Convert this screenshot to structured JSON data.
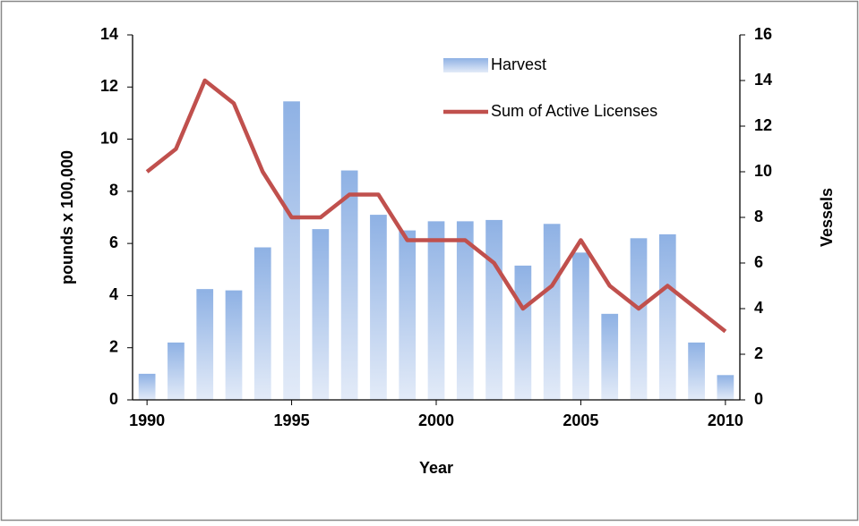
{
  "chart_data": {
    "type": "bar_line",
    "x_label": "Year",
    "y_label": "pounds x 100,000",
    "y2_label": "Vessels",
    "x": [
      1990,
      1991,
      1992,
      1993,
      1994,
      1995,
      1996,
      1997,
      1998,
      1999,
      2000,
      2001,
      2002,
      2003,
      2004,
      2005,
      2006,
      2007,
      2008,
      2009,
      2010
    ],
    "series": [
      {
        "name": "Harvest",
        "type": "bar",
        "color": "#8eb1e4",
        "values": [
          1.0,
          2.2,
          4.25,
          4.2,
          5.85,
          11.45,
          6.55,
          8.8,
          7.1,
          6.5,
          6.85,
          6.85,
          6.9,
          5.15,
          6.75,
          5.65,
          3.3,
          6.2,
          6.35,
          2.2,
          0.95
        ]
      },
      {
        "name": "Sum of Active Licenses",
        "type": "line",
        "color": "#c0504d",
        "axis": "y2",
        "values": [
          10,
          11,
          14,
          13,
          10,
          8,
          8,
          9,
          9,
          7,
          7,
          7,
          6,
          4,
          5,
          7,
          5,
          4,
          5,
          4,
          3
        ]
      }
    ],
    "xlim": [
      1989.5,
      2010.5
    ],
    "xticks": [
      1990,
      1995,
      2000,
      2005,
      2010
    ],
    "ylim": [
      0,
      14
    ],
    "yticks": [
      0,
      2,
      4,
      6,
      8,
      10,
      12,
      14
    ],
    "y2lim": [
      0,
      16
    ],
    "y2ticks": [
      0,
      2,
      4,
      6,
      8,
      10,
      12,
      14,
      16
    ],
    "legend": "top-right"
  }
}
